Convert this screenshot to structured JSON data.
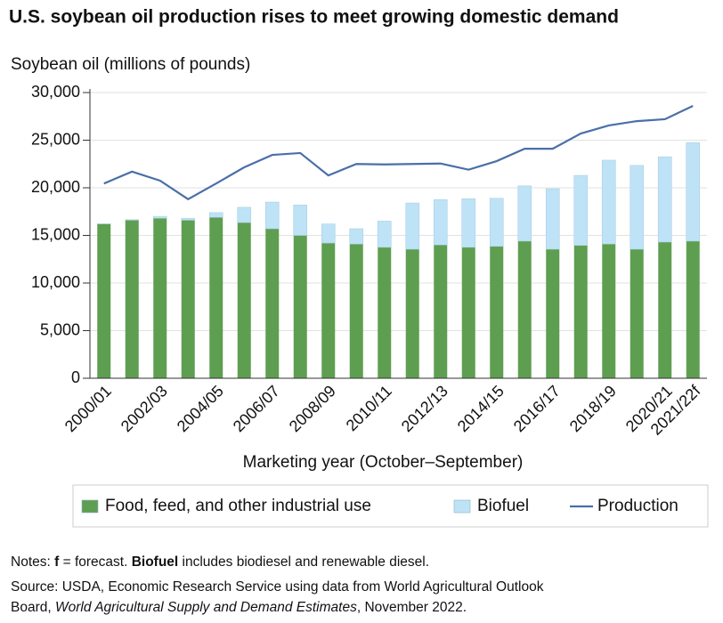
{
  "chart_data": {
    "type": "bar",
    "stacked": true,
    "title": "U.S. soybean oil production rises to meet growing domestic demand",
    "y_label": "Soybean oil (millions of pounds)",
    "x_label": "Marketing year (October–September)",
    "categories": [
      "2000/01",
      null,
      "2002/03",
      null,
      "2004/05",
      null,
      "2006/07",
      null,
      "2008/09",
      null,
      "2010/11",
      null,
      "2012/13",
      null,
      "2014/15",
      null,
      "2016/17",
      null,
      "2018/19",
      null,
      "2020/21",
      "2021/22f"
    ],
    "series": [
      {
        "name": "Food, feed, and other industrial use",
        "type": "bar",
        "color": "#5e9e50",
        "values": [
          16200,
          16600,
          16800,
          16600,
          16900,
          16350,
          15700,
          15000,
          14200,
          14100,
          13750,
          13550,
          14000,
          13750,
          13850,
          14400,
          13550,
          13950,
          14100,
          13550,
          14300,
          14400
        ]
      },
      {
        "name": "Biofuel",
        "type": "bar",
        "color": "#bfe3f6",
        "values": [
          30,
          50,
          200,
          200,
          500,
          1600,
          2800,
          3200,
          2000,
          1600,
          2750,
          4850,
          4750,
          5100,
          5050,
          5800,
          6350,
          7350,
          8800,
          8800,
          8950,
          10350
        ]
      },
      {
        "name": "Production",
        "type": "line",
        "color": "#4a6fa8",
        "values": [
          20450,
          21700,
          20750,
          18800,
          20450,
          22150,
          23450,
          23650,
          21300,
          22500,
          22450,
          22500,
          22550,
          21900,
          22800,
          24100,
          24100,
          25700,
          26550,
          27000,
          27200,
          28600
        ]
      }
    ],
    "ylim": [
      0,
      30000
    ],
    "yticks": [
      0,
      {
        "value": 5000,
        "label": "5,000"
      },
      {
        "value": 10000,
        "label": "10,000"
      },
      {
        "value": 15000,
        "label": "15,000"
      },
      {
        "value": 20000,
        "label": "20,000"
      },
      {
        "value": 25000,
        "label": "25,000"
      },
      {
        "value": 30000,
        "label": "30,000"
      }
    ],
    "grid": true,
    "legend": "bottom",
    "notes": [
      [
        "Notes: ",
        "f",
        " = forecast. ",
        "Biofuel",
        " includes biodiesel and renewable diesel."
      ],
      [
        "Source: USDA, Economic Research Service using data from World Agricultural Outlook"
      ],
      [
        "Board, ",
        "World Agricultural Supply and Demand Estimates",
        ", November 2022."
      ]
    ]
  }
}
